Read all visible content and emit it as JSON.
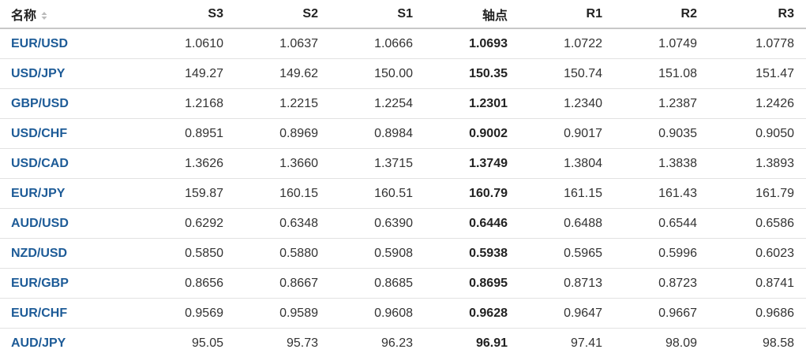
{
  "table": {
    "header": [
      "名称",
      "S3",
      "S2",
      "S1",
      "轴点",
      "R1",
      "R2",
      "R3"
    ],
    "rows": [
      [
        "EUR/USD",
        "1.0610",
        "1.0637",
        "1.0666",
        "1.0693",
        "1.0722",
        "1.0749",
        "1.0778"
      ],
      [
        "USD/JPY",
        "149.27",
        "149.62",
        "150.00",
        "150.35",
        "150.74",
        "151.08",
        "151.47"
      ],
      [
        "GBP/USD",
        "1.2168",
        "1.2215",
        "1.2254",
        "1.2301",
        "1.2340",
        "1.2387",
        "1.2426"
      ],
      [
        "USD/CHF",
        "0.8951",
        "0.8969",
        "0.8984",
        "0.9002",
        "0.9017",
        "0.9035",
        "0.9050"
      ],
      [
        "USD/CAD",
        "1.3626",
        "1.3660",
        "1.3715",
        "1.3749",
        "1.3804",
        "1.3838",
        "1.3893"
      ],
      [
        "EUR/JPY",
        "159.87",
        "160.15",
        "160.51",
        "160.79",
        "161.15",
        "161.43",
        "161.79"
      ],
      [
        "AUD/USD",
        "0.6292",
        "0.6348",
        "0.6390",
        "0.6446",
        "0.6488",
        "0.6544",
        "0.6586"
      ],
      [
        "NZD/USD",
        "0.5850",
        "0.5880",
        "0.5908",
        "0.5938",
        "0.5965",
        "0.5996",
        "0.6023"
      ],
      [
        "EUR/GBP",
        "0.8656",
        "0.8667",
        "0.8685",
        "0.8695",
        "0.8713",
        "0.8723",
        "0.8741"
      ],
      [
        "EUR/CHF",
        "0.9569",
        "0.9589",
        "0.9608",
        "0.9628",
        "0.9647",
        "0.9667",
        "0.9686"
      ],
      [
        "AUD/JPY",
        "95.05",
        "95.73",
        "96.23",
        "96.91",
        "97.41",
        "98.09",
        "98.58"
      ]
    ]
  }
}
